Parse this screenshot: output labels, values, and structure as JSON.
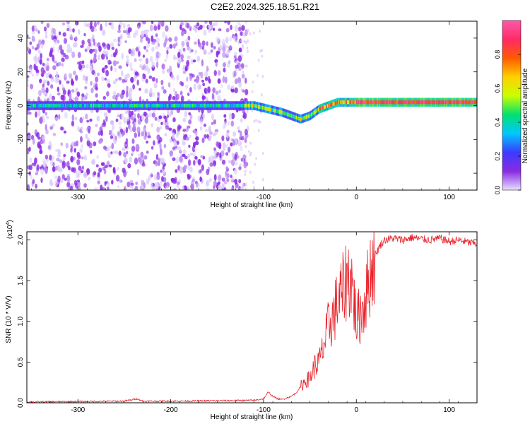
{
  "title": "C2E2.2024.325.18.51.R21",
  "colors": {
    "snr_line": "#e8232b",
    "colorbar_stops": [
      "#e8e0ff",
      "#8a2be2",
      "#3b3bff",
      "#00c8ff",
      "#00e070",
      "#c8ff00",
      "#ffd000",
      "#ff5a00",
      "#ff2a66",
      "#ff5aa8"
    ]
  },
  "chart_data": [
    {
      "type": "heatmap",
      "title": "C2E2.2024.325.18.51.R21",
      "xlabel": "Height of straight line (km)",
      "ylabel": "Frequency (Hz)",
      "xlim": [
        -355,
        130
      ],
      "ylim": [
        -50,
        50
      ],
      "xticks": [
        -300,
        -200,
        -100,
        0,
        100
      ],
      "xtick_labels": [
        "-300",
        "-200",
        "-100",
        "0",
        "100"
      ],
      "yticks": [
        -40,
        -20,
        0,
        20,
        40
      ],
      "ytick_labels": [
        "-40",
        "-20",
        "0",
        "20",
        "40"
      ],
      "ridge": {
        "description_points_x": [
          -355,
          -130,
          -110,
          -95,
          -80,
          -70,
          -60,
          -50,
          -40,
          -30,
          -20,
          -10,
          0,
          20,
          60,
          130
        ],
        "description_points_freq": [
          0,
          0,
          0,
          -2,
          -4,
          -6,
          -8,
          -6,
          -2,
          0,
          2,
          2,
          2,
          2,
          2,
          2
        ]
      },
      "colorbar": {
        "label": "Normalized spectral amplitude",
        "range": [
          0,
          1
        ],
        "ticks": [
          0.0,
          0.2,
          0.4,
          0.6,
          0.8
        ],
        "tick_labels": [
          "0.0",
          "0.2",
          "0.4",
          "0.6",
          "0.8"
        ]
      }
    },
    {
      "type": "line",
      "xlabel": "Height of straight line (km)",
      "ylabel": "SNR (10 * V/V)",
      "multiplier_label": "(x10",
      "multiplier_exp": "4",
      "multiplier_close": ")",
      "xlim": [
        -355,
        130
      ],
      "ylim": [
        0,
        2.1
      ],
      "xticks": [
        -300,
        -200,
        -100,
        0,
        100
      ],
      "xtick_labels": [
        "-300",
        "-200",
        "-100",
        "0",
        "100"
      ],
      "yticks": [
        0.0,
        0.5,
        1.0,
        1.5,
        2.0
      ],
      "ytick_labels": [
        "0.0",
        "0.5",
        "1.0",
        "1.5",
        "2.0"
      ],
      "series": [
        {
          "name": "SNR",
          "x": [
            -355,
            -300,
            -250,
            -236,
            -230,
            -200,
            -150,
            -110,
            -100,
            -95,
            -90,
            -85,
            -80,
            -75,
            -70,
            -65,
            -60,
            -55,
            -50,
            -45,
            -40,
            -35,
            -30,
            -25,
            -20,
            -15,
            -10,
            -5,
            0,
            5,
            10,
            15,
            20,
            25,
            30,
            40,
            50,
            60,
            70,
            80,
            90,
            100,
            110,
            120,
            130
          ],
          "values": [
            0.01,
            0.015,
            0.02,
            0.05,
            0.02,
            0.02,
            0.025,
            0.03,
            0.05,
            0.13,
            0.08,
            0.05,
            0.04,
            0.06,
            0.08,
            0.12,
            0.2,
            0.27,
            0.3,
            0.45,
            0.5,
            0.7,
            0.95,
            1.05,
            1.25,
            1.35,
            1.55,
            1.5,
            1.0,
            1.1,
            1.3,
            1.6,
            1.8,
            1.92,
            2.0,
            2.02,
            2.0,
            2.03,
            2.01,
            2.0,
            2.02,
            1.98,
            2.0,
            1.97,
            1.95
          ]
        }
      ]
    }
  ]
}
